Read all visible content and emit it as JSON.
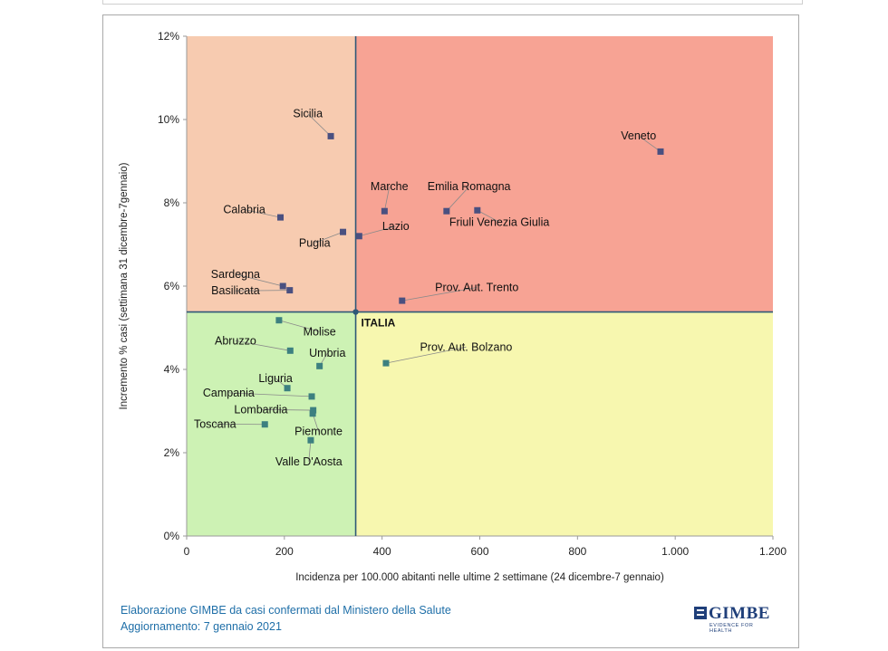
{
  "chart_data": {
    "type": "scatter",
    "title": "",
    "xlabel": "Incidenza per 100.000 abitanti nelle ultime 2 settimane (24 dicembre-7 gennaio)",
    "ylabel": "Incremento % casi (settimana 31 dicembre-7gennaio)",
    "xlim": [
      0,
      1200
    ],
    "ylim": [
      0,
      12
    ],
    "x_ticks": [
      0,
      200,
      400,
      600,
      800,
      1000,
      1200
    ],
    "x_tick_labels": [
      "0",
      "200",
      "400",
      "600",
      "800",
      "1.000",
      "1.200"
    ],
    "y_ticks": [
      0,
      2,
      4,
      6,
      8,
      10,
      12
    ],
    "y_tick_labels": [
      "0%",
      "2%",
      "4%",
      "6%",
      "8%",
      "10%",
      "12%"
    ],
    "reference": {
      "name": "ITALIA",
      "x": 346,
      "y": 5.38
    },
    "quadrant_colors": {
      "top_left": "#f7cbb0",
      "top_right": "#f7a394",
      "bottom_left": "#cdf2b4",
      "bottom_right": "#f7f7af"
    },
    "point_colors": {
      "upper": "#4a5080",
      "lower": "#3d8080"
    },
    "line_color": "#2f5877",
    "points": [
      {
        "name": "Sicilia",
        "x": 295,
        "y": 9.6,
        "label_x": 248,
        "label_y": 10.05
      },
      {
        "name": "Veneto",
        "x": 970,
        "y": 9.23,
        "label_x": 925,
        "label_y": 9.52
      },
      {
        "name": "Marche",
        "x": 405,
        "y": 7.8,
        "label_x": 415,
        "label_y": 8.3
      },
      {
        "name": "Emilia Romagna",
        "x": 532,
        "y": 7.8,
        "label_x": 578,
        "label_y": 8.3
      },
      {
        "name": "Friuli Venezia Giulia",
        "x": 595,
        "y": 7.82,
        "label_x": 640,
        "label_y": 7.45
      },
      {
        "name": "Calabria",
        "x": 192,
        "y": 7.65,
        "label_x": 118,
        "label_y": 7.75
      },
      {
        "name": "Lazio",
        "x": 353,
        "y": 7.2,
        "label_x": 428,
        "label_y": 7.35
      },
      {
        "name": "Puglia",
        "x": 320,
        "y": 7.3,
        "label_x": 262,
        "label_y": 6.95
      },
      {
        "name": "Sardegna",
        "x": 197,
        "y": 6.0,
        "label_x": 100,
        "label_y": 6.2
      },
      {
        "name": "Basilicata",
        "x": 211,
        "y": 5.9,
        "label_x": 100,
        "label_y": 5.8
      },
      {
        "name": "Prov. Aut. Trento",
        "x": 441,
        "y": 5.65,
        "label_x": 594,
        "label_y": 5.88
      },
      {
        "name": "Molise",
        "x": 189,
        "y": 5.18,
        "label_x": 272,
        "label_y": 4.82
      },
      {
        "name": "Abruzzo",
        "x": 212,
        "y": 4.45,
        "label_x": 100,
        "label_y": 4.6
      },
      {
        "name": "Prov. Aut. Bolzano",
        "x": 408,
        "y": 4.15,
        "label_x": 572,
        "label_y": 4.45
      },
      {
        "name": "Umbria",
        "x": 272,
        "y": 4.08,
        "label_x": 288,
        "label_y": 4.3
      },
      {
        "name": "Liguria",
        "x": 206,
        "y": 3.55,
        "label_x": 182,
        "label_y": 3.7
      },
      {
        "name": "Campania",
        "x": 256,
        "y": 3.35,
        "label_x": 86,
        "label_y": 3.35
      },
      {
        "name": "Lombardia",
        "x": 259,
        "y": 3.02,
        "label_x": 152,
        "label_y": 2.95
      },
      {
        "name": "Toscana",
        "x": 160,
        "y": 2.68,
        "label_x": 58,
        "label_y": 2.6
      },
      {
        "name": "Piemonte",
        "x": 258,
        "y": 2.94,
        "label_x": 270,
        "label_y": 2.42
      },
      {
        "name": "Valle D'Aosta",
        "x": 254,
        "y": 2.3,
        "label_x": 250,
        "label_y": 1.7
      }
    ],
    "source": "Elaborazione GIMBE da casi confermati dal Ministero della Salute",
    "updated": "Aggiornamento: 7 gennaio 2021",
    "logo": {
      "name": "GIMBE",
      "tagline": "EVIDENCE FOR HEALTH",
      "color": "#1f3f7a"
    }
  }
}
